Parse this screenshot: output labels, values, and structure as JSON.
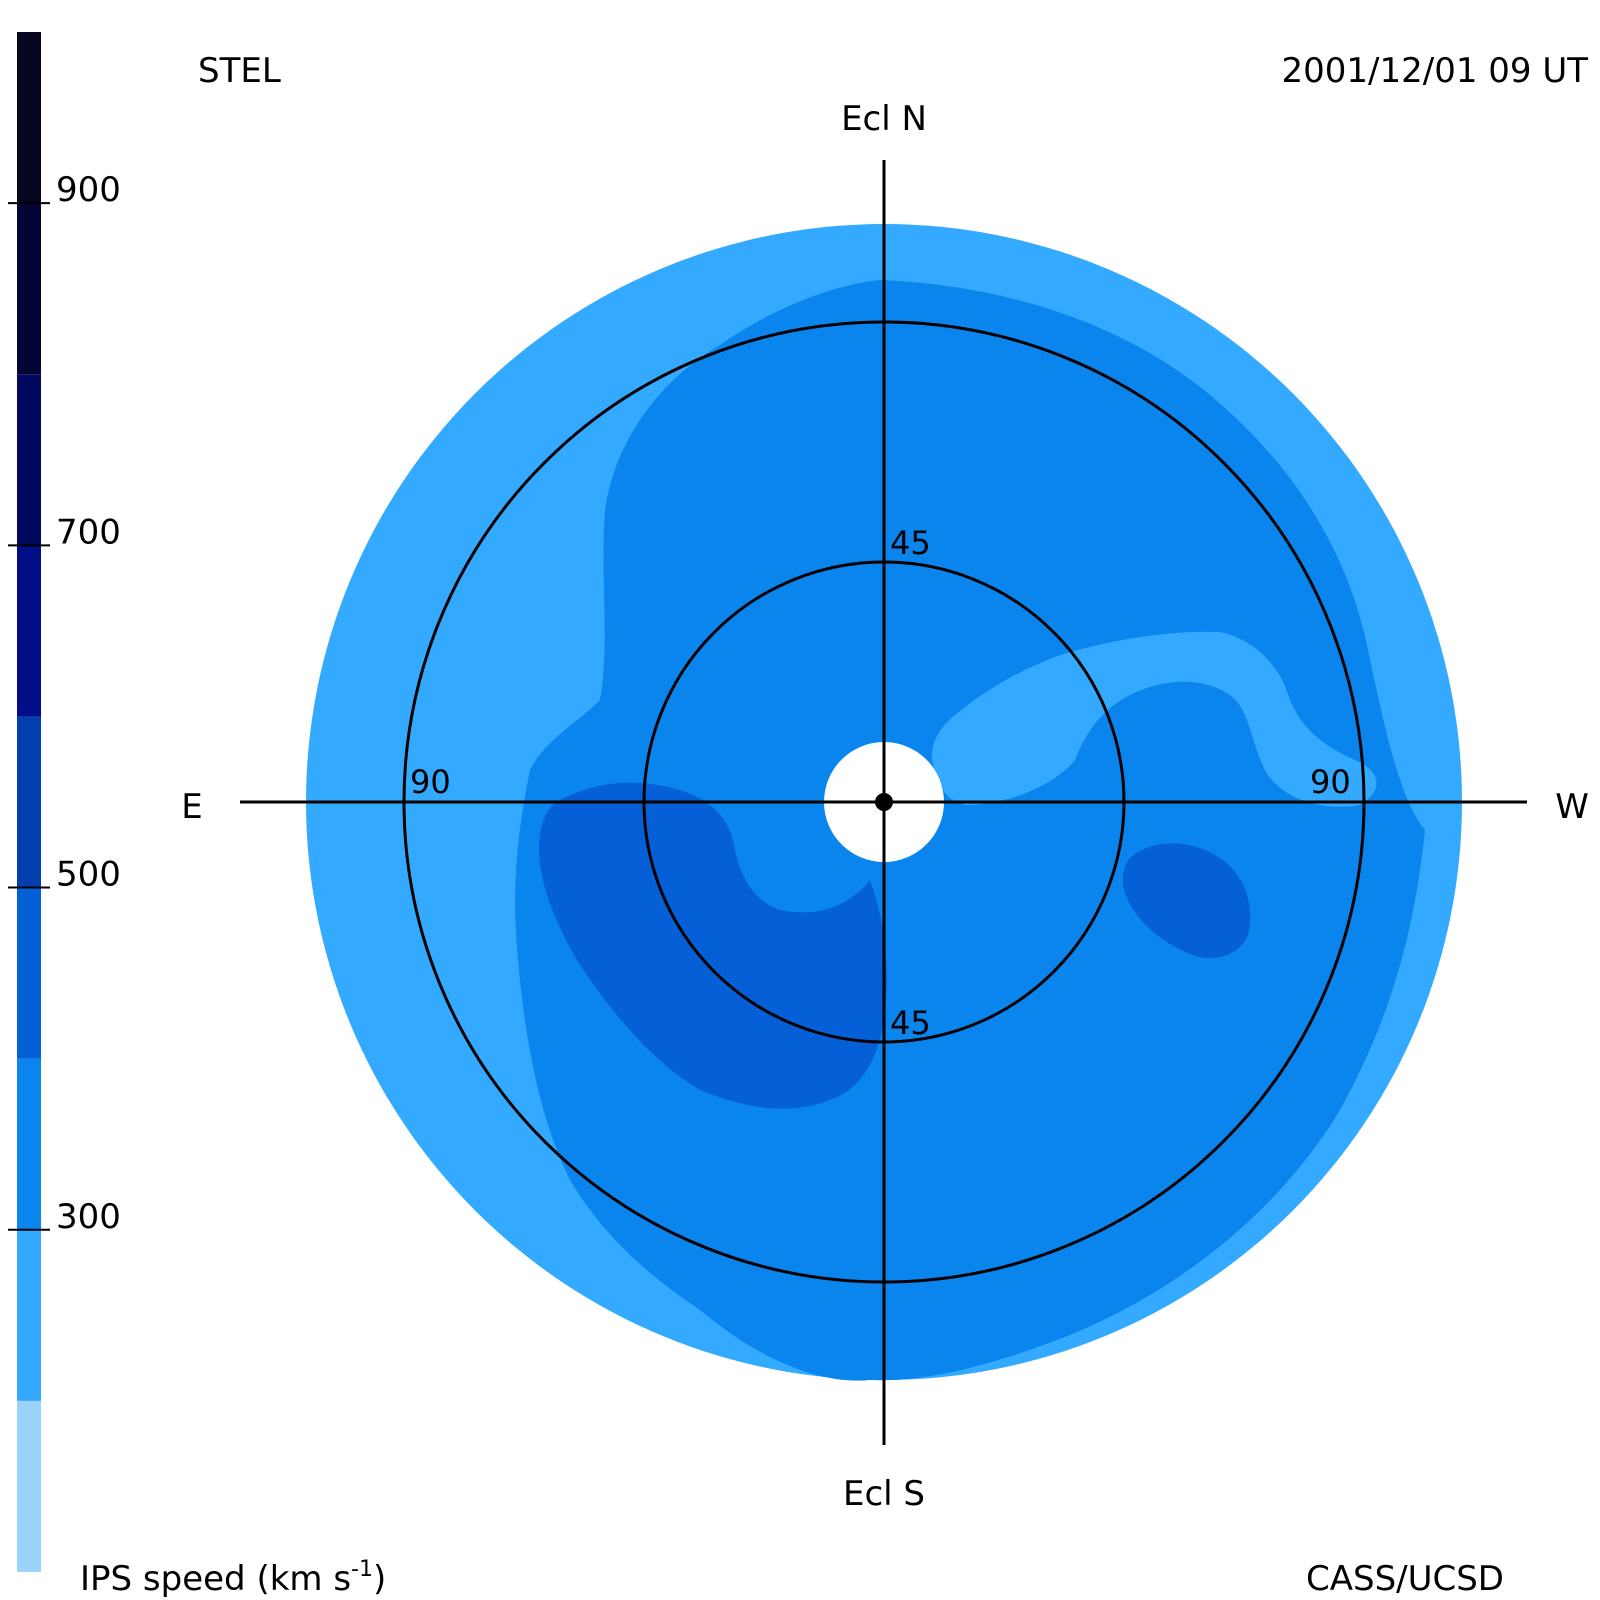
{
  "header": {
    "observatory": "STEL",
    "timestamp": "2001/12/01 09 UT"
  },
  "footer": {
    "colorbar_title": "IPS speed (km s",
    "colorbar_title_exponent": "-1",
    "colorbar_title_close": ")",
    "credit": "CASS/UCSD"
  },
  "compass": {
    "north": "Ecl N",
    "south": "Ecl S",
    "east": "E",
    "west": "W"
  },
  "rings": {
    "inner_label": "45",
    "outer_label": "90"
  },
  "colorbar": {
    "tick_labels": [
      "900",
      "700",
      "500",
      "300"
    ],
    "tick_values": [
      900,
      700,
      500,
      300
    ],
    "min": 100,
    "max": 1000,
    "bands": [
      {
        "from": 100,
        "to": 200,
        "color": "#9bd3fb"
      },
      {
        "from": 200,
        "to": 300,
        "color": "#33aaff"
      },
      {
        "from": 300,
        "to": 400,
        "color": "#0a85ee"
      },
      {
        "from": 400,
        "to": 500,
        "color": "#055fd6"
      },
      {
        "from": 500,
        "to": 600,
        "color": "#0440ad"
      },
      {
        "from": 600,
        "to": 700,
        "color": "#020e85"
      },
      {
        "from": 700,
        "to": 800,
        "color": "#03085f"
      },
      {
        "from": 800,
        "to": 900,
        "color": "#050535"
      },
      {
        "from": 900,
        "to": 1000,
        "color": "#06061e"
      }
    ]
  },
  "map_colors": {
    "speed_200_300": "#33aaff",
    "speed_300_400": "#0a85ee",
    "speed_400_500": "#055fd6",
    "sun_occulter": "#ffffff",
    "lines": "#000000"
  }
}
